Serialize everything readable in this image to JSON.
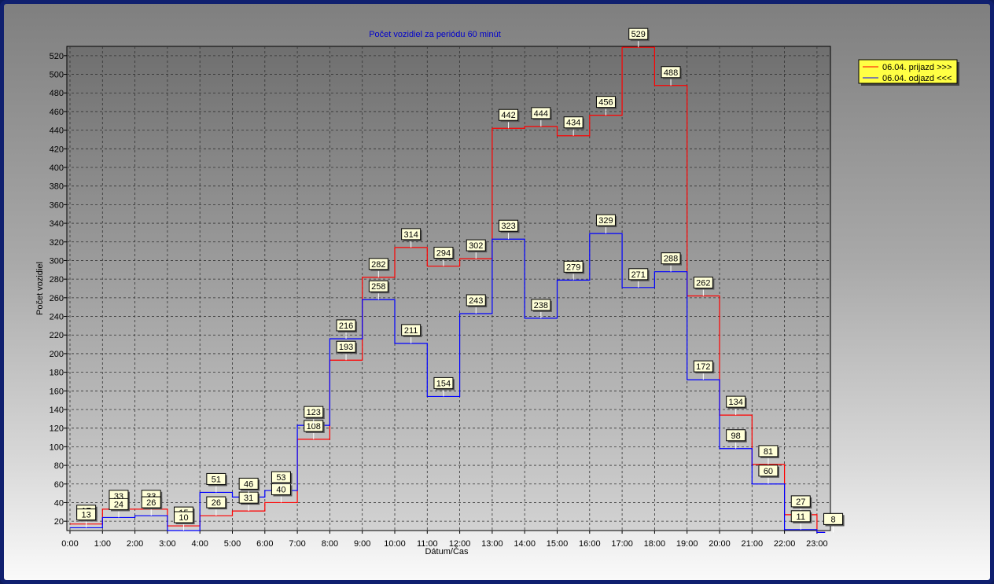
{
  "chart_data": {
    "type": "line",
    "title": "Počet vozidiel za periódu 60 minút",
    "xlabel": "Dátum/Čas",
    "ylabel": "Počet vozidiel",
    "categories": [
      "0:00",
      "1:00",
      "2:00",
      "3:00",
      "4:00",
      "5:00",
      "6:00",
      "7:00",
      "8:00",
      "9:00",
      "10:00",
      "11:00",
      "12:00",
      "13:00",
      "14:00",
      "15:00",
      "16:00",
      "17:00",
      "18:00",
      "19:00",
      "20:00",
      "21:00",
      "22:00",
      "23:00"
    ],
    "ylim": [
      10,
      530
    ],
    "yticks": [
      20,
      40,
      60,
      80,
      100,
      120,
      140,
      160,
      180,
      200,
      220,
      240,
      260,
      280,
      300,
      320,
      340,
      360,
      380,
      400,
      420,
      440,
      460,
      480,
      500,
      520
    ],
    "grid": true,
    "legend_position": "top-right",
    "series": [
      {
        "name": "06.04.  prijazd >>>",
        "color": "#ff0000",
        "values": [
          17,
          33,
          33,
          15,
          26,
          31,
          40,
          108,
          193,
          282,
          314,
          294,
          302,
          442,
          444,
          434,
          456,
          529,
          488,
          262,
          134,
          81,
          27,
          8
        ]
      },
      {
        "name": "06.04.  odjazd <<<",
        "color": "#0000ff",
        "values": [
          13,
          24,
          26,
          10,
          51,
          46,
          53,
          123,
          216,
          258,
          211,
          154,
          243,
          323,
          238,
          279,
          329,
          271,
          288,
          172,
          98,
          60,
          11,
          8
        ]
      }
    ]
  }
}
